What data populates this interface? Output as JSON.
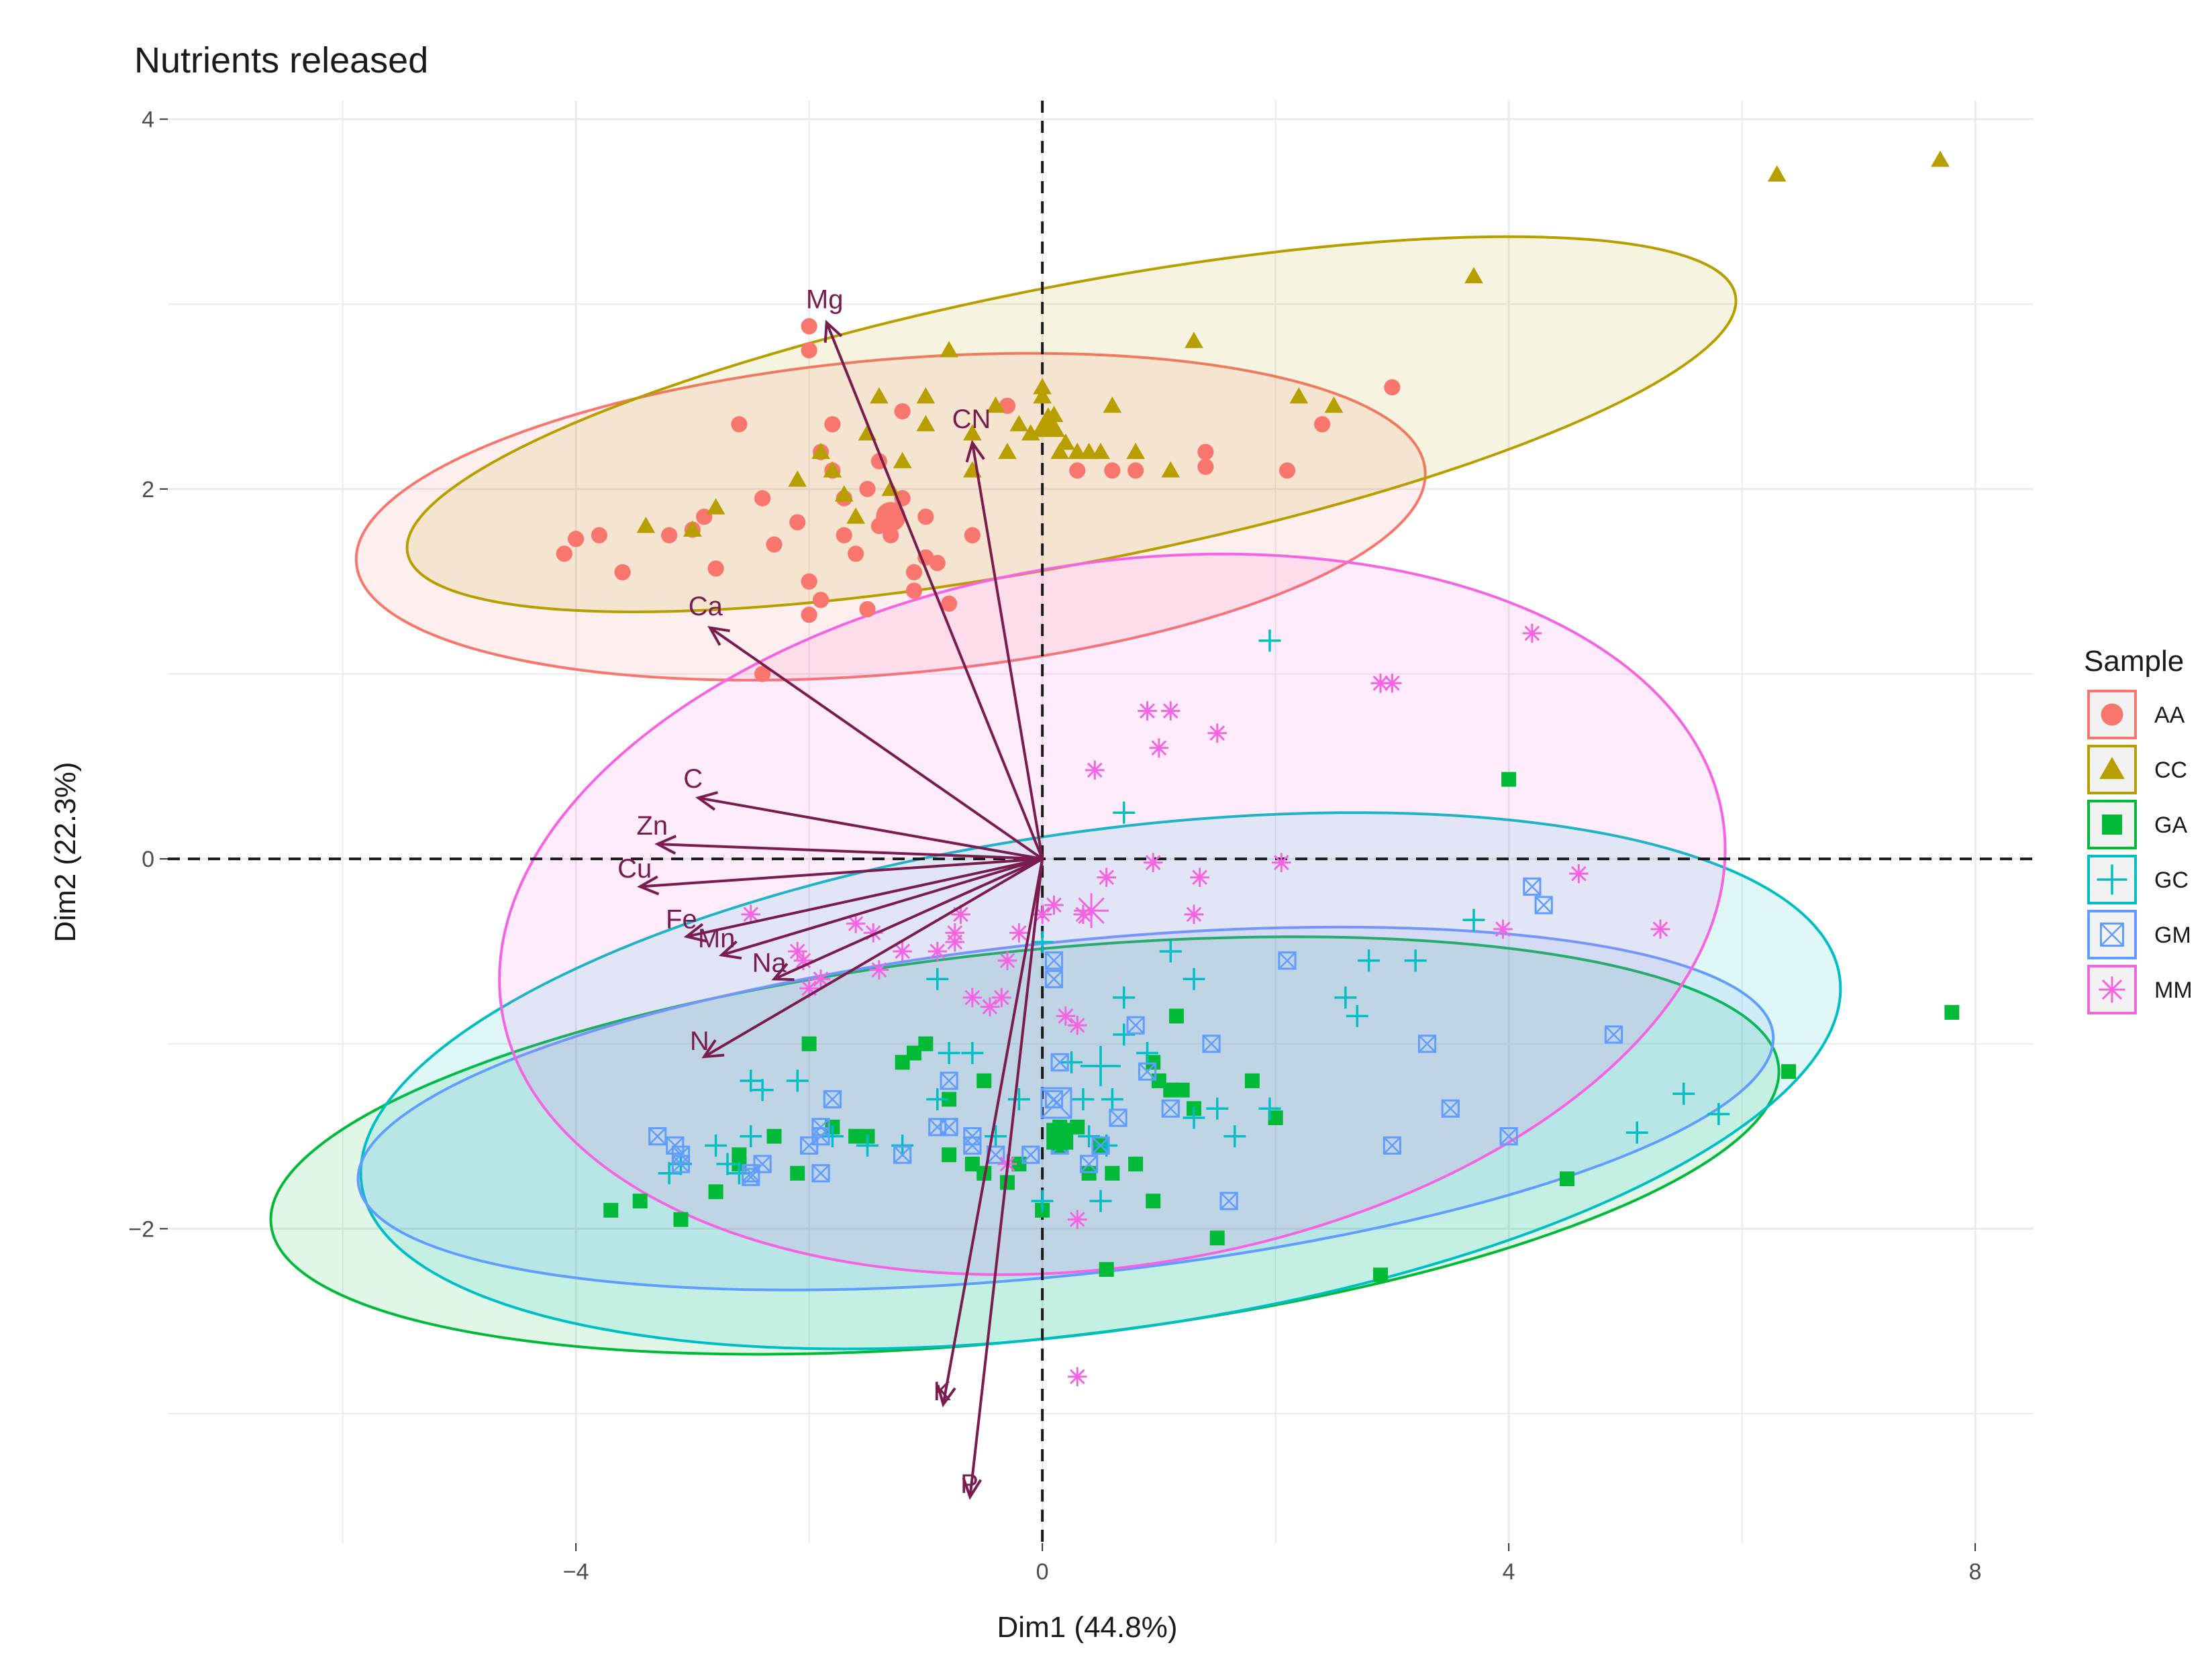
{
  "chart_data": {
    "type": "scatter",
    "title": "Nutrients released",
    "xlabel": "Dim1 (44.8%)",
    "ylabel": "Dim2 (22.3%)",
    "xlim": [
      -7.5,
      8.5
    ],
    "ylim": [
      -3.7,
      4.1
    ],
    "xticks": [
      -4,
      0,
      4,
      8
    ],
    "yticks": [
      -2,
      0,
      2,
      4
    ],
    "xtick_labels": [
      "−4",
      "0",
      "4",
      "8"
    ],
    "ytick_labels": [
      "−2",
      "0",
      "2",
      "4"
    ],
    "grid": true,
    "legend": {
      "title": "Sample",
      "position": "right"
    },
    "series": [
      {
        "name": "AA",
        "color": "#F8766D",
        "marker": "circle",
        "points": [
          [
            -4.1,
            1.65
          ],
          [
            -4.0,
            1.73
          ],
          [
            -3.8,
            1.75
          ],
          [
            -3.6,
            1.55
          ],
          [
            -3.2,
            1.75
          ],
          [
            -3.0,
            1.78
          ],
          [
            -2.9,
            1.85
          ],
          [
            -2.8,
            1.57
          ],
          [
            -2.6,
            2.35
          ],
          [
            -2.4,
            1.95
          ],
          [
            -2.3,
            1.7
          ],
          [
            -2.1,
            1.82
          ],
          [
            -2.0,
            1.5
          ],
          [
            -1.9,
            1.4
          ],
          [
            -1.9,
            2.2
          ],
          [
            -1.8,
            2.35
          ],
          [
            -1.7,
            1.75
          ],
          [
            -1.7,
            1.95
          ],
          [
            -1.6,
            1.65
          ],
          [
            -1.5,
            2.0
          ],
          [
            -1.4,
            2.15
          ],
          [
            -1.3,
            1.75
          ],
          [
            -1.2,
            1.95
          ],
          [
            -1.1,
            1.55
          ],
          [
            -1.0,
            1.85
          ],
          [
            -1.0,
            1.63
          ],
          [
            -0.9,
            1.6
          ],
          [
            -0.8,
            1.38
          ],
          [
            -0.6,
            1.75
          ],
          [
            -1.5,
            1.35
          ],
          [
            -2.0,
            1.32
          ],
          [
            -2.0,
            2.88
          ],
          [
            -2.0,
            2.75
          ],
          [
            -1.2,
            2.42
          ],
          [
            -0.3,
            2.45
          ],
          [
            0.3,
            2.1
          ],
          [
            0.6,
            2.1
          ],
          [
            0.8,
            2.1
          ],
          [
            1.4,
            2.12
          ],
          [
            1.4,
            2.2
          ],
          [
            2.1,
            2.1
          ],
          [
            2.4,
            2.35
          ],
          [
            3.0,
            2.55
          ],
          [
            -2.4,
            1.0
          ],
          [
            -1.1,
            1.45
          ],
          [
            -1.8,
            2.1
          ],
          [
            -1.4,
            1.8
          ]
        ]
      },
      {
        "name": "CC",
        "color": "#B79F00",
        "marker": "triangle",
        "points": [
          [
            -3.4,
            1.8
          ],
          [
            -3.0,
            1.78
          ],
          [
            -2.8,
            1.9
          ],
          [
            -2.1,
            2.05
          ],
          [
            -1.9,
            2.2
          ],
          [
            -1.8,
            2.1
          ],
          [
            -1.7,
            1.97
          ],
          [
            -1.6,
            1.85
          ],
          [
            -1.5,
            2.3
          ],
          [
            -1.4,
            2.5
          ],
          [
            -1.3,
            2.0
          ],
          [
            -1.2,
            2.15
          ],
          [
            -1.0,
            2.5
          ],
          [
            -1.0,
            2.35
          ],
          [
            -0.8,
            2.75
          ],
          [
            -0.6,
            2.1
          ],
          [
            -0.6,
            2.3
          ],
          [
            -0.3,
            2.2
          ],
          [
            -0.2,
            2.35
          ],
          [
            -0.1,
            2.3
          ],
          [
            0.0,
            2.5
          ],
          [
            0.1,
            2.4
          ],
          [
            0.15,
            2.2
          ],
          [
            0.2,
            2.25
          ],
          [
            0.3,
            2.2
          ],
          [
            0.4,
            2.2
          ],
          [
            0.5,
            2.2
          ],
          [
            0.6,
            2.45
          ],
          [
            0.8,
            2.2
          ],
          [
            1.1,
            2.1
          ],
          [
            1.3,
            2.8
          ],
          [
            2.2,
            2.5
          ],
          [
            2.5,
            2.45
          ],
          [
            3.7,
            3.15
          ],
          [
            6.3,
            3.7
          ],
          [
            7.7,
            3.78
          ],
          [
            0.0,
            2.55
          ],
          [
            -0.4,
            2.45
          ]
        ]
      },
      {
        "name": "GA",
        "color": "#00BA38",
        "marker": "square",
        "points": [
          [
            -3.7,
            -1.9
          ],
          [
            -3.45,
            -1.85
          ],
          [
            -3.1,
            -1.95
          ],
          [
            -2.8,
            -1.8
          ],
          [
            -2.6,
            -1.6
          ],
          [
            -2.6,
            -1.65
          ],
          [
            -2.3,
            -1.5
          ],
          [
            -2.1,
            -1.7
          ],
          [
            -2.0,
            -1.0
          ],
          [
            -1.8,
            -1.45
          ],
          [
            -1.6,
            -1.5
          ],
          [
            -1.5,
            -1.5
          ],
          [
            -1.2,
            -1.1
          ],
          [
            -1.1,
            -1.05
          ],
          [
            -1.0,
            -1.0
          ],
          [
            -0.8,
            -1.6
          ],
          [
            -0.6,
            -1.65
          ],
          [
            -0.5,
            -1.7
          ],
          [
            -0.3,
            -1.75
          ],
          [
            -0.2,
            -1.65
          ],
          [
            0.1,
            -1.5
          ],
          [
            0.15,
            -1.45
          ],
          [
            0.2,
            -1.5
          ],
          [
            0.3,
            -1.45
          ],
          [
            0.4,
            -1.7
          ],
          [
            0.5,
            -1.55
          ],
          [
            0.6,
            -1.7
          ],
          [
            0.8,
            -1.65
          ],
          [
            0.95,
            -1.85
          ],
          [
            0.95,
            -1.1
          ],
          [
            1.0,
            -1.2
          ],
          [
            1.1,
            -1.25
          ],
          [
            1.2,
            -1.25
          ],
          [
            1.3,
            -1.35
          ],
          [
            1.5,
            -2.05
          ],
          [
            1.8,
            -1.2
          ],
          [
            2.0,
            -1.4
          ],
          [
            2.9,
            -2.25
          ],
          [
            4.0,
            0.43
          ],
          [
            4.5,
            -1.73
          ],
          [
            6.4,
            -1.15
          ],
          [
            7.8,
            -0.83
          ],
          [
            0.0,
            -1.9
          ],
          [
            -0.5,
            -1.2
          ],
          [
            0.15,
            -1.55
          ],
          [
            1.15,
            -0.85
          ],
          [
            -0.8,
            -1.3
          ],
          [
            0.55,
            -2.22
          ]
        ]
      },
      {
        "name": "GC",
        "color": "#00BFC4",
        "marker": "plus",
        "points": [
          [
            -3.2,
            -1.7
          ],
          [
            -3.1,
            -1.65
          ],
          [
            -2.8,
            -1.55
          ],
          [
            -2.6,
            -1.7
          ],
          [
            -2.5,
            -1.5
          ],
          [
            -2.5,
            -1.2
          ],
          [
            -2.4,
            -1.25
          ],
          [
            -2.1,
            -1.2
          ],
          [
            -1.8,
            -1.5
          ],
          [
            -1.5,
            -1.55
          ],
          [
            -1.2,
            -1.55
          ],
          [
            -0.9,
            -0.65
          ],
          [
            -0.8,
            -1.05
          ],
          [
            -0.6,
            -1.05
          ],
          [
            -0.4,
            -1.5
          ],
          [
            -0.2,
            -1.3
          ],
          [
            0.0,
            -0.45
          ],
          [
            0.0,
            -1.85
          ],
          [
            0.25,
            -1.1
          ],
          [
            0.35,
            -1.3
          ],
          [
            0.55,
            -1.55
          ],
          [
            0.6,
            -1.3
          ],
          [
            0.7,
            -0.75
          ],
          [
            0.7,
            -0.95
          ],
          [
            0.7,
            0.25
          ],
          [
            0.9,
            -1.05
          ],
          [
            1.1,
            -0.5
          ],
          [
            1.3,
            -0.65
          ],
          [
            1.3,
            -1.4
          ],
          [
            1.5,
            -1.35
          ],
          [
            1.65,
            -1.5
          ],
          [
            1.95,
            -1.35
          ],
          [
            1.95,
            1.18
          ],
          [
            2.6,
            -0.75
          ],
          [
            2.7,
            -0.85
          ],
          [
            2.8,
            -0.55
          ],
          [
            3.2,
            -0.55
          ],
          [
            3.7,
            -0.33
          ],
          [
            5.1,
            -1.48
          ],
          [
            5.5,
            -1.27
          ],
          [
            5.8,
            -1.38
          ],
          [
            0.5,
            -1.85
          ],
          [
            -2.7,
            -1.65
          ],
          [
            0.4,
            -1.5
          ],
          [
            -0.9,
            -1.3
          ]
        ]
      },
      {
        "name": "GM",
        "color": "#619CFF",
        "marker": "boxx",
        "points": [
          [
            -3.3,
            -1.5
          ],
          [
            -3.15,
            -1.55
          ],
          [
            -3.1,
            -1.6
          ],
          [
            -3.1,
            -1.65
          ],
          [
            -2.5,
            -1.7
          ],
          [
            -2.5,
            -1.72
          ],
          [
            -2.4,
            -1.65
          ],
          [
            -2.0,
            -1.55
          ],
          [
            -1.9,
            -1.5
          ],
          [
            -1.9,
            -1.45
          ],
          [
            -1.9,
            -1.7
          ],
          [
            -1.2,
            -1.6
          ],
          [
            -0.9,
            -1.45
          ],
          [
            -0.8,
            -1.2
          ],
          [
            -0.8,
            -1.45
          ],
          [
            -0.6,
            -1.5
          ],
          [
            -0.6,
            -1.55
          ],
          [
            -0.4,
            -1.6
          ],
          [
            -0.1,
            -1.6
          ],
          [
            0.1,
            -0.55
          ],
          [
            0.15,
            -1.1
          ],
          [
            0.15,
            -1.55
          ],
          [
            0.4,
            -1.65
          ],
          [
            0.65,
            -1.4
          ],
          [
            0.8,
            -0.9
          ],
          [
            0.9,
            -1.15
          ],
          [
            1.1,
            -1.35
          ],
          [
            1.45,
            -1.0
          ],
          [
            1.6,
            -1.85
          ],
          [
            2.1,
            -0.55
          ],
          [
            3.0,
            -1.55
          ],
          [
            3.3,
            -1.0
          ],
          [
            3.5,
            -1.35
          ],
          [
            4.0,
            -1.5
          ],
          [
            4.2,
            -0.15
          ],
          [
            4.3,
            -0.25
          ],
          [
            4.9,
            -0.95
          ],
          [
            0.5,
            -1.55
          ],
          [
            -1.8,
            -1.3
          ],
          [
            0.1,
            -0.65
          ],
          [
            0.1,
            -1.3
          ]
        ]
      },
      {
        "name": "MM",
        "color": "#F564E3",
        "marker": "asterisk",
        "points": [
          [
            -2.5,
            -0.3
          ],
          [
            -2.1,
            -0.5
          ],
          [
            -2.05,
            -0.55
          ],
          [
            -2.0,
            -0.7
          ],
          [
            -1.9,
            -0.65
          ],
          [
            -1.6,
            -0.35
          ],
          [
            -1.45,
            -0.4
          ],
          [
            -1.2,
            -0.5
          ],
          [
            -0.9,
            -0.5
          ],
          [
            -0.75,
            -0.45
          ],
          [
            -0.75,
            -0.4
          ],
          [
            -0.7,
            -0.3
          ],
          [
            -0.6,
            -0.75
          ],
          [
            -0.45,
            -0.8
          ],
          [
            -0.35,
            -0.75
          ],
          [
            -0.3,
            -0.55
          ],
          [
            -0.2,
            -0.4
          ],
          [
            0.0,
            -0.3
          ],
          [
            0.1,
            -0.25
          ],
          [
            0.3,
            -0.9
          ],
          [
            0.3,
            -1.95
          ],
          [
            0.35,
            -0.3
          ],
          [
            0.55,
            -0.1
          ],
          [
            0.45,
            0.48
          ],
          [
            0.9,
            0.8
          ],
          [
            1.0,
            0.6
          ],
          [
            1.1,
            0.8
          ],
          [
            1.3,
            -0.3
          ],
          [
            1.35,
            -0.1
          ],
          [
            1.5,
            0.68
          ],
          [
            2.05,
            -0.02
          ],
          [
            2.9,
            0.95
          ],
          [
            3.0,
            0.95
          ],
          [
            3.95,
            -0.38
          ],
          [
            4.2,
            1.22
          ],
          [
            4.6,
            -0.08
          ],
          [
            5.3,
            -0.38
          ],
          [
            0.3,
            -2.8
          ],
          [
            -0.3,
            -1.65
          ],
          [
            -1.4,
            -0.6
          ],
          [
            0.95,
            -0.02
          ],
          [
            0.2,
            -0.85
          ]
        ]
      }
    ],
    "group_centers": [
      {
        "name": "AA",
        "x": -1.3,
        "y": 1.85
      },
      {
        "name": "CC",
        "x": 0.05,
        "y": 2.35
      },
      {
        "name": "GA",
        "x": 0.15,
        "y": -1.5
      },
      {
        "name": "GC",
        "x": 0.5,
        "y": -1.12
      },
      {
        "name": "GM",
        "x": 0.12,
        "y": -1.32
      },
      {
        "name": "MM",
        "x": 0.42,
        "y": -0.28
      }
    ],
    "ellipses": [
      {
        "name": "AA",
        "cx": -1.3,
        "cy": 1.85,
        "rx": 4.6,
        "ry": 0.85,
        "angle_deg": 5
      },
      {
        "name": "CC",
        "cx": 0.25,
        "cy": 2.35,
        "rx": 5.8,
        "ry": 0.75,
        "angle_deg": 11
      },
      {
        "name": "GA",
        "cx": -0.15,
        "cy": -1.55,
        "rx": 6.5,
        "ry": 1.05,
        "angle_deg": 6
      },
      {
        "name": "GC",
        "cx": 0.5,
        "cy": -1.2,
        "rx": 6.4,
        "ry": 1.35,
        "angle_deg": 8
      },
      {
        "name": "GM",
        "cx": 0.2,
        "cy": -1.35,
        "rx": 6.1,
        "ry": 0.9,
        "angle_deg": 6
      },
      {
        "name": "MM",
        "cx": 0.6,
        "cy": -0.3,
        "rx": 5.3,
        "ry": 1.9,
        "angle_deg": 9
      }
    ],
    "vectors": [
      {
        "name": "Mg",
        "x": -1.85,
        "y": 2.9
      },
      {
        "name": "CN",
        "x": -0.6,
        "y": 2.25
      },
      {
        "name": "Ca",
        "x": -2.85,
        "y": 1.25
      },
      {
        "name": "C",
        "x": -2.95,
        "y": 0.33
      },
      {
        "name": "Zn",
        "x": -3.3,
        "y": 0.08
      },
      {
        "name": "Cu",
        "x": -3.45,
        "y": -0.15
      },
      {
        "name": "Fe",
        "x": -3.05,
        "y": -0.42
      },
      {
        "name": "Mn",
        "x": -2.75,
        "y": -0.52
      },
      {
        "name": "Na",
        "x": -2.3,
        "y": -0.65
      },
      {
        "name": "N",
        "x": -2.9,
        "y": -1.07
      },
      {
        "name": "K",
        "x": -0.85,
        "y": -2.95
      },
      {
        "name": "P",
        "x": -0.62,
        "y": -3.45
      }
    ],
    "colors": {
      "vector": "#7b1c4f",
      "grid": "#ebebeb",
      "zero_line": "#1a1a1a"
    }
  }
}
